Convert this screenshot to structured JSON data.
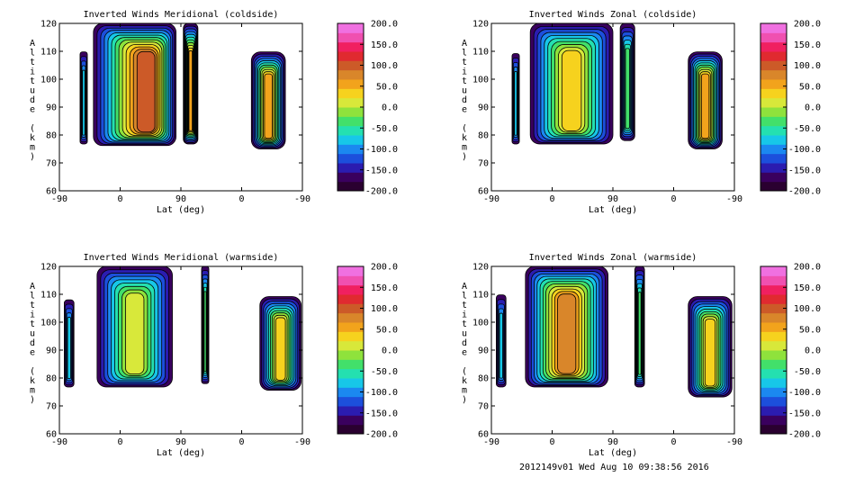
{
  "footer": "2012149v01 Wed Aug 10 09:38:56 2016",
  "colormap": [
    "#2a0030",
    "#3a005e",
    "#2b1cb0",
    "#1c4fdc",
    "#1b88f0",
    "#17c7e8",
    "#24e0b0",
    "#42e06a",
    "#8fe23c",
    "#d8e83a",
    "#f6d21e",
    "#f2a31c",
    "#d9862a",
    "#cc5a28",
    "#e02a30",
    "#f02060",
    "#f050b0",
    "#f070e0"
  ],
  "chart_data": [
    {
      "type": "heatmap",
      "title": "Inverted Winds Meridional (coldside)",
      "xlabel": "Lat (deg)",
      "ylabel": "Altitude (km)",
      "x_ticks": [
        "-90",
        "0",
        "90",
        "0",
        "-90"
      ],
      "y_ticks": [
        "60",
        "70",
        "80",
        "90",
        "100",
        "110",
        "120"
      ],
      "ylim": [
        60,
        120
      ],
      "colorbar_ticks": [
        "200.0",
        "150.0",
        "100.0",
        "50.0",
        "0.0",
        "-50.0",
        "-100.0",
        "-150.0",
        "-200.0"
      ],
      "colorbar_range": [
        -200,
        200
      ]
    },
    {
      "type": "heatmap",
      "title": "Inverted Winds Zonal (coldside)",
      "xlabel": "Lat (deg)",
      "ylabel": "Altitude (km)",
      "x_ticks": [
        "-90",
        "0",
        "90",
        "0",
        "-90"
      ],
      "y_ticks": [
        "60",
        "70",
        "80",
        "90",
        "100",
        "110",
        "120"
      ],
      "ylim": [
        60,
        120
      ],
      "colorbar_ticks": [
        "200.0",
        "150.0",
        "100.0",
        "50.0",
        "0.0",
        "-50.0",
        "-100.0",
        "-150.0",
        "-200.0"
      ],
      "colorbar_range": [
        -200,
        200
      ]
    },
    {
      "type": "heatmap",
      "title": "Inverted Winds Meridional (warmside)",
      "xlabel": "Lat (deg)",
      "ylabel": "Altitude (km)",
      "x_ticks": [
        "-90",
        "0",
        "90",
        "0",
        "-90"
      ],
      "y_ticks": [
        "60",
        "70",
        "80",
        "90",
        "100",
        "110",
        "120"
      ],
      "ylim": [
        60,
        120
      ],
      "colorbar_ticks": [
        "200.0",
        "150.0",
        "100.0",
        "50.0",
        "0.0",
        "-50.0",
        "-100.0",
        "-150.0",
        "-200.0"
      ],
      "colorbar_range": [
        -200,
        200
      ]
    },
    {
      "type": "heatmap",
      "title": "Inverted Winds Zonal (warmside)",
      "xlabel": "Lat (deg)",
      "ylabel": "Altitude (km)",
      "x_ticks": [
        "-90",
        "0",
        "90",
        "0",
        "-90"
      ],
      "y_ticks": [
        "60",
        "70",
        "80",
        "90",
        "100",
        "110",
        "120"
      ],
      "ylim": [
        60,
        120
      ],
      "colorbar_ticks": [
        "200.0",
        "150.0",
        "100.0",
        "50.0",
        "0.0",
        "-50.0",
        "-100.0",
        "-150.0",
        "-200.0"
      ],
      "colorbar_range": [
        -200,
        200
      ]
    }
  ]
}
